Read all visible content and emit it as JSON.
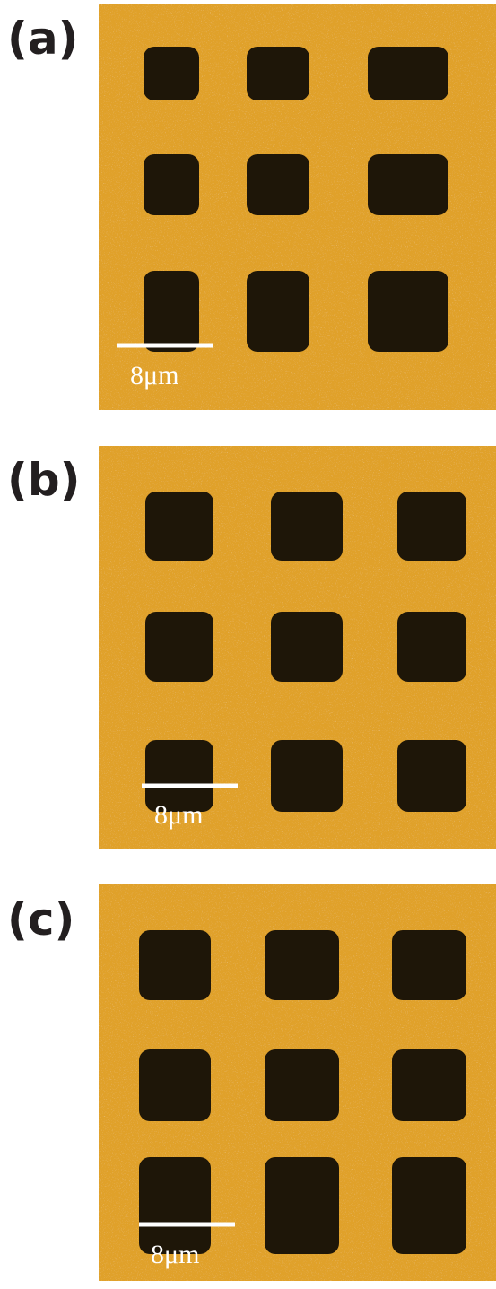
{
  "panels": [
    {
      "label": "(a)",
      "scale_bar": "8μm"
    },
    {
      "label": "(b)",
      "scale_bar": "8μm"
    },
    {
      "label": "(c)",
      "scale_bar": "8μm"
    }
  ]
}
